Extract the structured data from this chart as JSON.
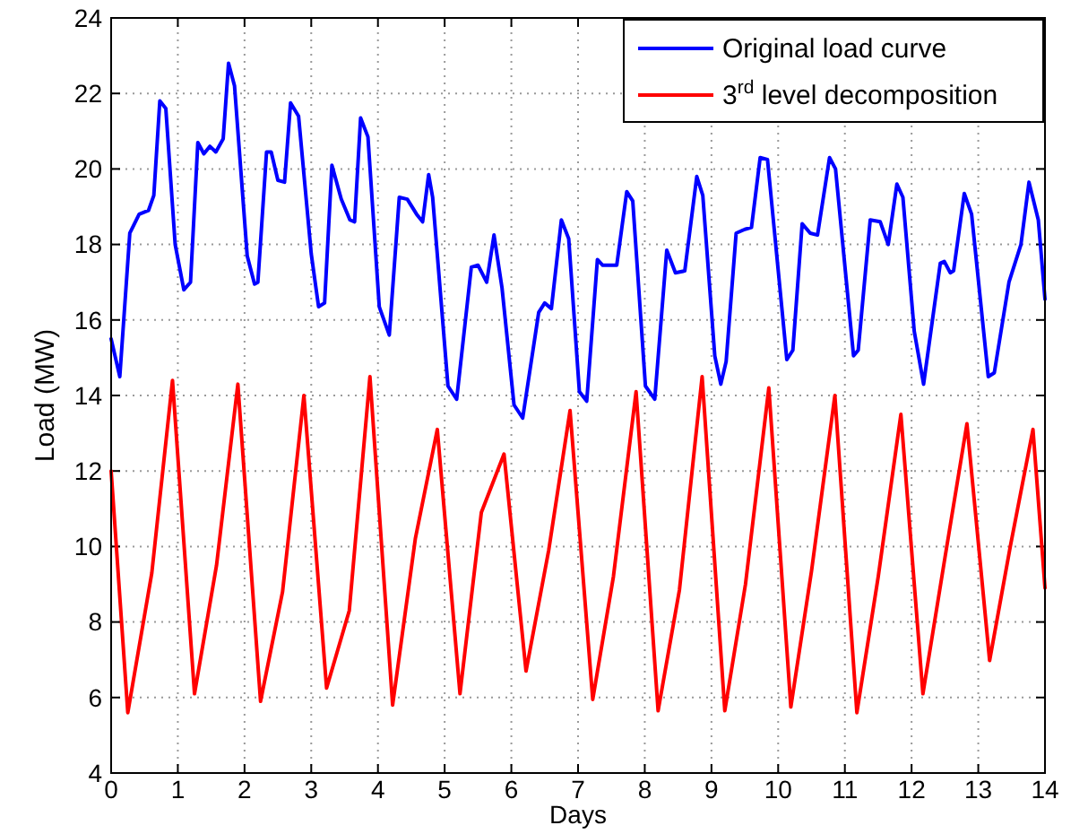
{
  "chart_data": {
    "type": "line",
    "xlabel": "Days",
    "ylabel": "Load (MW)",
    "xlim": [
      0,
      14
    ],
    "ylim": [
      4,
      24
    ],
    "xticks": [
      0,
      1,
      2,
      3,
      4,
      5,
      6,
      7,
      8,
      9,
      10,
      11,
      12,
      13,
      14
    ],
    "yticks": [
      4,
      6,
      8,
      10,
      12,
      14,
      16,
      18,
      20,
      22,
      24
    ],
    "grid": true,
    "legend": "top right",
    "line_style": "solid",
    "marker": "none",
    "series": [
      {
        "name": "Original load curve",
        "color": "#0000ff",
        "x": [
          0,
          0.13,
          0.28,
          0.42,
          0.56,
          0.64,
          0.73,
          0.82,
          0.96,
          1.09,
          1.19,
          1.3,
          1.39,
          1.48,
          1.57,
          1.68,
          1.76,
          1.85,
          2.04,
          2.15,
          2.2,
          2.33,
          2.4,
          2.5,
          2.6,
          2.69,
          2.81,
          3.0,
          3.11,
          3.2,
          3.31,
          3.45,
          3.58,
          3.65,
          3.74,
          3.85,
          4.02,
          4.17,
          4.32,
          4.44,
          4.58,
          4.67,
          4.76,
          4.82,
          5.05,
          5.18,
          5.4,
          5.5,
          5.63,
          5.74,
          5.86,
          6.04,
          6.17,
          6.41,
          6.5,
          6.6,
          6.75,
          6.86,
          7.02,
          7.13,
          7.29,
          7.37,
          7.58,
          7.73,
          7.82,
          8.01,
          8.15,
          8.33,
          8.46,
          8.6,
          8.78,
          8.87,
          9.05,
          9.14,
          9.22,
          9.37,
          9.5,
          9.6,
          9.73,
          9.84,
          10.13,
          10.22,
          10.36,
          10.48,
          10.59,
          10.77,
          10.86,
          11.13,
          11.2,
          11.38,
          11.53,
          11.65,
          11.78,
          11.87,
          12.04,
          12.18,
          12.43,
          12.49,
          12.58,
          12.63,
          12.79,
          12.9,
          13.15,
          13.24,
          13.46,
          13.64,
          13.76,
          13.9,
          14.0
        ],
        "values": [
          15.5,
          14.5,
          18.3,
          18.8,
          18.9,
          19.3,
          21.8,
          21.6,
          18.0,
          16.8,
          17.0,
          20.7,
          20.4,
          20.6,
          20.45,
          20.8,
          22.8,
          22.2,
          17.7,
          16.95,
          17.0,
          20.45,
          20.45,
          19.7,
          19.65,
          21.75,
          21.4,
          17.75,
          16.35,
          16.45,
          20.1,
          19.2,
          18.65,
          18.6,
          21.35,
          20.85,
          16.35,
          15.6,
          19.25,
          19.2,
          18.8,
          18.6,
          19.85,
          19.25,
          14.25,
          13.9,
          17.4,
          17.45,
          17.0,
          18.25,
          16.85,
          13.75,
          13.4,
          16.2,
          16.45,
          16.3,
          18.65,
          18.15,
          14.1,
          13.85,
          17.6,
          17.45,
          17.45,
          19.4,
          19.15,
          14.25,
          13.9,
          17.85,
          17.25,
          17.3,
          19.8,
          19.3,
          15.05,
          14.3,
          14.9,
          18.3,
          18.4,
          18.45,
          20.3,
          20.25,
          14.95,
          15.2,
          18.55,
          18.3,
          18.25,
          20.3,
          20.0,
          15.05,
          15.2,
          18.65,
          18.6,
          18.0,
          19.6,
          19.25,
          15.7,
          14.3,
          17.5,
          17.55,
          17.25,
          17.3,
          19.35,
          18.8,
          14.5,
          14.6,
          17.0,
          18.0,
          19.65,
          18.65,
          16.55
        ]
      },
      {
        "name": "3$^{rd}$ level decomposition",
        "color": "#ff0000",
        "x": [
          0,
          0.25,
          0.61,
          0.92,
          1.25,
          1.58,
          1.9,
          2.24,
          2.57,
          2.89,
          3.23,
          3.57,
          3.88,
          4.22,
          4.56,
          4.89,
          5.23,
          5.55,
          5.89,
          6.22,
          6.56,
          6.88,
          7.22,
          7.53,
          7.87,
          8.2,
          8.52,
          8.86,
          9.2,
          9.51,
          9.86,
          10.19,
          10.5,
          10.85,
          11.18,
          11.5,
          11.84,
          12.17,
          12.5,
          12.83,
          13.17,
          13.48,
          13.82,
          14.0
        ],
        "values": [
          12,
          5.6,
          9.3,
          14.4,
          6.1,
          9.5,
          14.3,
          5.9,
          8.8,
          14.0,
          6.25,
          8.3,
          14.5,
          5.8,
          10.2,
          13.1,
          6.1,
          10.9,
          12.45,
          6.7,
          9.9,
          13.6,
          5.95,
          9.2,
          14.1,
          5.65,
          8.85,
          14.5,
          5.65,
          9.0,
          14.2,
          5.75,
          9.35,
          14.0,
          5.6,
          9.2,
          13.5,
          6.1,
          9.7,
          13.25,
          6.98,
          10.0,
          13.1,
          8.9
        ]
      }
    ]
  }
}
